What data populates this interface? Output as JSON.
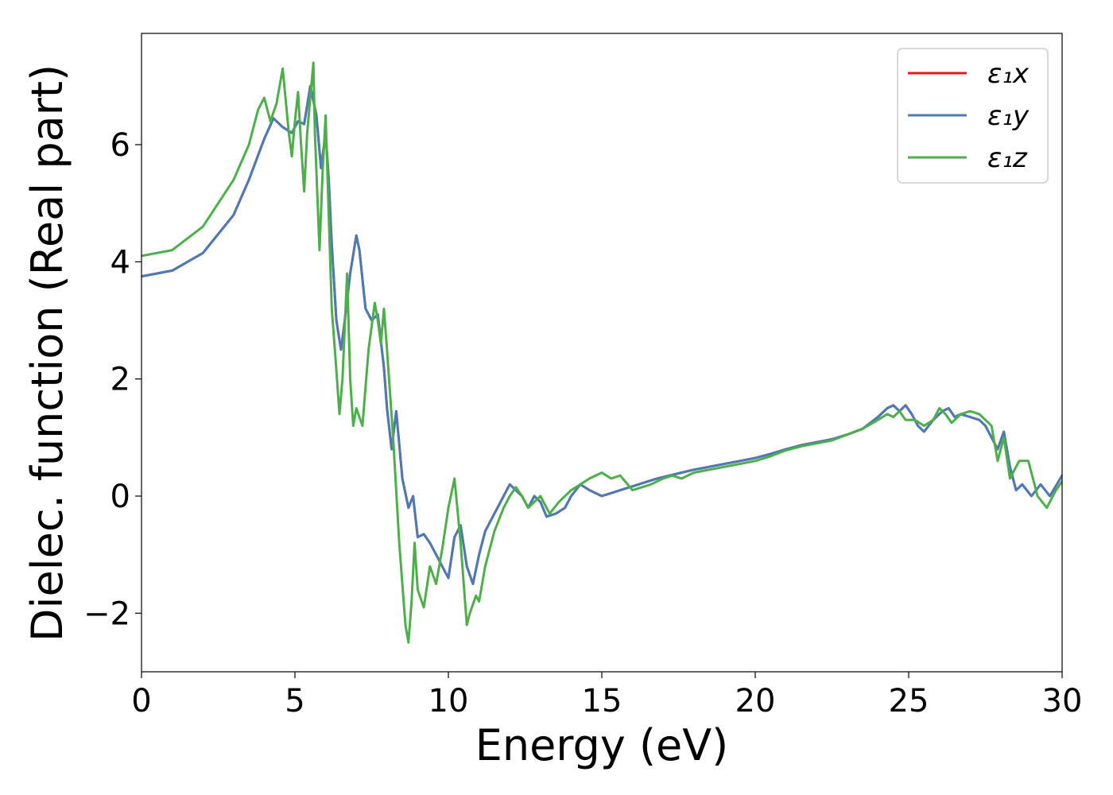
{
  "chart_data": {
    "type": "line",
    "title": "",
    "xlabel": "Energy (eV)",
    "ylabel": "Dielec. function (Real part)",
    "xlim": [
      0,
      30
    ],
    "ylim": [
      -3,
      7.9
    ],
    "xticks": [
      0,
      5,
      10,
      15,
      20,
      25,
      30
    ],
    "xtick_labels": [
      "0",
      "5",
      "10",
      "15",
      "20",
      "25",
      "30"
    ],
    "yticks": [
      -2,
      0,
      2,
      4,
      6
    ],
    "ytick_labels": [
      "−2",
      "0",
      "2",
      "4",
      "6"
    ],
    "grid": false,
    "legend_position": "top-right",
    "series": [
      {
        "name": "ε₁x",
        "color": "#e41a1c",
        "x": [
          0,
          1,
          2,
          3,
          3.5,
          4,
          4.3,
          4.6,
          4.9,
          5.1,
          5.3,
          5.5,
          5.7,
          5.85,
          6.0,
          6.1,
          6.2,
          6.35,
          6.5,
          6.6,
          6.8,
          7.0,
          7.1,
          7.3,
          7.5,
          7.7,
          7.9,
          8.0,
          8.15,
          8.3,
          8.5,
          8.7,
          8.85,
          9.0,
          9.2,
          9.4,
          9.6,
          9.8,
          10.0,
          10.2,
          10.4,
          10.6,
          10.8,
          11.0,
          11.2,
          11.5,
          11.8,
          12.0,
          12.2,
          12.4,
          12.6,
          12.8,
          13.0,
          13.2,
          13.5,
          13.8,
          14.0,
          14.3,
          14.6,
          15.0,
          15.3,
          15.6,
          15.9,
          16.2,
          16.5,
          16.8,
          17.2,
          17.6,
          18.0,
          18.5,
          19.0,
          19.5,
          20.0,
          20.5,
          21.0,
          21.5,
          22.0,
          22.5,
          23.0,
          23.5,
          24.0,
          24.3,
          24.5,
          24.7,
          24.9,
          25.1,
          25.3,
          25.5,
          25.8,
          26.1,
          26.3,
          26.5,
          26.7,
          27.0,
          27.3,
          27.5,
          27.7,
          27.9,
          28.1,
          28.3,
          28.5,
          28.7,
          29.0,
          29.3,
          29.6,
          30.0
        ],
        "y": [
          3.75,
          3.85,
          4.15,
          4.8,
          5.4,
          6.1,
          6.45,
          6.3,
          6.2,
          6.4,
          6.35,
          7.0,
          6.5,
          5.6,
          6.2,
          5.4,
          4.3,
          3.0,
          2.5,
          2.9,
          3.8,
          4.45,
          4.2,
          3.2,
          3.0,
          3.1,
          2.2,
          1.5,
          0.8,
          1.45,
          0.3,
          -0.2,
          0.0,
          -0.7,
          -0.65,
          -0.8,
          -1.0,
          -1.2,
          -1.4,
          -0.7,
          -0.5,
          -1.2,
          -1.5,
          -1.0,
          -0.6,
          -0.3,
          0.0,
          0.2,
          0.1,
          0.0,
          -0.2,
          0.0,
          -0.1,
          -0.35,
          -0.3,
          -0.2,
          0.0,
          0.2,
          0.1,
          0.0,
          0.05,
          0.1,
          0.15,
          0.2,
          0.25,
          0.3,
          0.35,
          0.4,
          0.45,
          0.5,
          0.55,
          0.6,
          0.65,
          0.72,
          0.8,
          0.87,
          0.92,
          0.97,
          1.05,
          1.15,
          1.35,
          1.5,
          1.55,
          1.45,
          1.55,
          1.4,
          1.2,
          1.1,
          1.3,
          1.45,
          1.5,
          1.35,
          1.4,
          1.35,
          1.3,
          1.2,
          1.0,
          0.8,
          1.1,
          0.5,
          0.1,
          0.2,
          0.0,
          0.2,
          0.0,
          0.35
        ]
      },
      {
        "name": "ε₁y",
        "color": "#4a7bb7",
        "x": [
          0,
          1,
          2,
          3,
          3.5,
          4,
          4.3,
          4.6,
          4.9,
          5.1,
          5.3,
          5.5,
          5.7,
          5.85,
          6.0,
          6.1,
          6.2,
          6.35,
          6.5,
          6.6,
          6.8,
          7.0,
          7.1,
          7.3,
          7.5,
          7.7,
          7.9,
          8.0,
          8.15,
          8.3,
          8.5,
          8.7,
          8.85,
          9.0,
          9.2,
          9.4,
          9.6,
          9.8,
          10.0,
          10.2,
          10.4,
          10.6,
          10.8,
          11.0,
          11.2,
          11.5,
          11.8,
          12.0,
          12.2,
          12.4,
          12.6,
          12.8,
          13.0,
          13.2,
          13.5,
          13.8,
          14.0,
          14.3,
          14.6,
          15.0,
          15.3,
          15.6,
          15.9,
          16.2,
          16.5,
          16.8,
          17.2,
          17.6,
          18.0,
          18.5,
          19.0,
          19.5,
          20.0,
          20.5,
          21.0,
          21.5,
          22.0,
          22.5,
          23.0,
          23.5,
          24.0,
          24.3,
          24.5,
          24.7,
          24.9,
          25.1,
          25.3,
          25.5,
          25.8,
          26.1,
          26.3,
          26.5,
          26.7,
          27.0,
          27.3,
          27.5,
          27.7,
          27.9,
          28.1,
          28.3,
          28.5,
          28.7,
          29.0,
          29.3,
          29.6,
          30.0
        ],
        "y": [
          3.75,
          3.85,
          4.15,
          4.8,
          5.4,
          6.1,
          6.45,
          6.3,
          6.2,
          6.4,
          6.35,
          7.0,
          6.5,
          5.6,
          6.2,
          5.4,
          4.3,
          3.0,
          2.5,
          2.9,
          3.8,
          4.45,
          4.2,
          3.2,
          3.0,
          3.1,
          2.2,
          1.5,
          0.8,
          1.45,
          0.3,
          -0.2,
          0.0,
          -0.7,
          -0.65,
          -0.8,
          -1.0,
          -1.2,
          -1.4,
          -0.7,
          -0.5,
          -1.2,
          -1.5,
          -1.0,
          -0.6,
          -0.3,
          0.0,
          0.2,
          0.1,
          0.0,
          -0.2,
          0.0,
          -0.1,
          -0.35,
          -0.3,
          -0.2,
          0.0,
          0.2,
          0.1,
          0.0,
          0.05,
          0.1,
          0.15,
          0.2,
          0.25,
          0.3,
          0.35,
          0.4,
          0.45,
          0.5,
          0.55,
          0.6,
          0.65,
          0.72,
          0.8,
          0.87,
          0.92,
          0.97,
          1.05,
          1.15,
          1.35,
          1.5,
          1.55,
          1.45,
          1.55,
          1.4,
          1.2,
          1.1,
          1.3,
          1.45,
          1.5,
          1.35,
          1.4,
          1.35,
          1.3,
          1.2,
          1.0,
          0.8,
          1.1,
          0.5,
          0.1,
          0.2,
          0.0,
          0.2,
          0.0,
          0.35
        ]
      },
      {
        "name": "ε₁z",
        "color": "#4daf4a",
        "x": [
          0,
          1,
          2,
          3,
          3.5,
          3.8,
          4.0,
          4.2,
          4.4,
          4.6,
          4.8,
          4.9,
          5.0,
          5.1,
          5.2,
          5.3,
          5.4,
          5.5,
          5.6,
          5.65,
          5.8,
          5.9,
          6.0,
          6.1,
          6.2,
          6.3,
          6.45,
          6.55,
          6.7,
          6.8,
          6.9,
          7.0,
          7.2,
          7.4,
          7.6,
          7.7,
          7.8,
          7.9,
          8.0,
          8.2,
          8.4,
          8.6,
          8.7,
          8.8,
          8.9,
          9.0,
          9.2,
          9.4,
          9.6,
          9.8,
          10.0,
          10.2,
          10.4,
          10.6,
          10.7,
          10.9,
          11.0,
          11.2,
          11.5,
          11.8,
          12.0,
          12.2,
          12.4,
          12.6,
          12.8,
          13.0,
          13.3,
          13.6,
          14.0,
          14.3,
          14.6,
          15.0,
          15.3,
          15.6,
          16.0,
          16.3,
          16.6,
          17.0,
          17.3,
          17.6,
          18.0,
          18.5,
          19.0,
          19.5,
          20.0,
          20.5,
          21.0,
          21.5,
          22.0,
          22.5,
          23.0,
          23.5,
          24.0,
          24.3,
          24.5,
          24.7,
          24.9,
          25.2,
          25.5,
          25.8,
          26.0,
          26.2,
          26.4,
          26.7,
          27.0,
          27.3,
          27.5,
          27.7,
          27.9,
          28.1,
          28.3,
          28.6,
          28.9,
          29.2,
          29.5,
          29.8,
          30.0
        ],
        "y": [
          4.1,
          4.2,
          4.6,
          5.4,
          6.0,
          6.6,
          6.8,
          6.4,
          6.7,
          7.3,
          6.2,
          5.8,
          6.4,
          6.9,
          6.0,
          5.2,
          6.2,
          6.8,
          7.4,
          6.2,
          4.2,
          5.5,
          6.5,
          4.8,
          3.2,
          2.5,
          1.4,
          2.0,
          3.8,
          2.0,
          1.2,
          1.5,
          1.2,
          2.5,
          3.3,
          3.0,
          2.6,
          3.2,
          2.5,
          1.0,
          -0.8,
          -2.2,
          -2.5,
          -1.8,
          -0.8,
          -1.6,
          -1.9,
          -1.2,
          -1.5,
          -0.9,
          -0.2,
          0.3,
          -0.8,
          -2.2,
          -2.0,
          -1.7,
          -1.8,
          -1.2,
          -0.6,
          -0.2,
          0.0,
          0.15,
          0.0,
          -0.2,
          -0.1,
          0.0,
          -0.3,
          -0.1,
          0.1,
          0.2,
          0.3,
          0.4,
          0.3,
          0.35,
          0.1,
          0.15,
          0.2,
          0.3,
          0.35,
          0.3,
          0.4,
          0.45,
          0.5,
          0.55,
          0.6,
          0.68,
          0.78,
          0.85,
          0.9,
          0.95,
          1.05,
          1.15,
          1.3,
          1.4,
          1.35,
          1.45,
          1.3,
          1.3,
          1.2,
          1.3,
          1.5,
          1.4,
          1.25,
          1.4,
          1.45,
          1.4,
          1.3,
          1.2,
          0.6,
          1.0,
          0.3,
          0.6,
          0.6,
          0.0,
          -0.2,
          0.1,
          0.25
        ]
      }
    ]
  }
}
